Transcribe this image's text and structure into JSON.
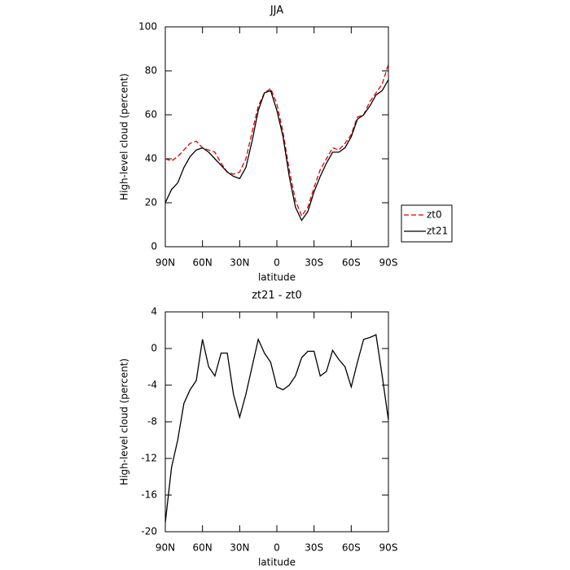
{
  "chart_data": [
    {
      "type": "line",
      "title": "JJA",
      "xlabel": "latitude",
      "ylabel": "High-level cloud (percent)",
      "x": [
        90,
        85,
        80,
        75,
        70,
        65,
        60,
        55,
        50,
        45,
        40,
        35,
        30,
        25,
        20,
        15,
        10,
        5,
        0,
        -5,
        -10,
        -15,
        -20,
        -25,
        -30,
        -35,
        -40,
        -45,
        -50,
        -55,
        -60,
        -65,
        -70,
        -75,
        -80,
        -85,
        -90
      ],
      "series": [
        {
          "name": "zt0",
          "color": "#e00000",
          "dashed": true,
          "values": [
            40,
            39,
            41,
            44,
            47,
            48,
            45,
            44,
            43,
            38,
            34,
            33,
            34,
            40,
            52,
            64,
            70,
            72,
            65,
            52,
            35,
            21,
            14,
            18,
            27,
            35,
            40,
            45,
            44,
            47,
            51,
            59,
            60,
            66,
            70,
            74,
            83
          ]
        },
        {
          "name": "zt21",
          "color": "#000000",
          "dashed": false,
          "values": [
            20,
            26,
            29,
            36,
            41,
            44,
            45,
            43,
            40,
            37,
            34,
            32,
            31,
            36,
            48,
            62,
            70,
            71,
            62,
            50,
            32,
            18,
            12,
            16,
            25,
            32,
            38,
            43,
            43,
            45,
            50,
            58,
            60,
            64,
            69,
            71,
            76
          ]
        }
      ],
      "xlim": [
        90,
        -90
      ],
      "xticks": [
        {
          "value": 90,
          "label": "90N"
        },
        {
          "value": 60,
          "label": "60N"
        },
        {
          "value": 30,
          "label": "30N"
        },
        0,
        {
          "value": -30,
          "label": "30S"
        },
        {
          "value": -60,
          "label": "60S"
        },
        {
          "value": -90,
          "label": "90S"
        }
      ],
      "ylim": [
        0,
        100
      ],
      "yticks": [
        0,
        20,
        40,
        60,
        80,
        100
      ],
      "legend": "right"
    },
    {
      "type": "line",
      "title": "zt21 - zt0",
      "xlabel": "latitude",
      "ylabel": "High-level cloud (percent)",
      "x": [
        90,
        85,
        80,
        75,
        70,
        65,
        60,
        55,
        50,
        45,
        40,
        35,
        30,
        25,
        20,
        15,
        10,
        5,
        0,
        -5,
        -10,
        -15,
        -20,
        -25,
        -30,
        -35,
        -40,
        -45,
        -50,
        -55,
        -60,
        -65,
        -70,
        -75,
        -80,
        -85,
        -90
      ],
      "series": [
        {
          "color": "#000000",
          "dashed": false,
          "values": [
            -19,
            -13,
            -10,
            -6,
            -4.5,
            -3.5,
            1,
            -2,
            -3,
            -0.5,
            -0.5,
            -5,
            -7.5,
            -5,
            -2,
            1,
            -0.5,
            -1.5,
            -4.2,
            -4.5,
            -4,
            -3,
            -1,
            -0.3,
            -0.3,
            -3,
            -2.5,
            -0.2,
            -1.2,
            -2,
            -4.2,
            -1.5,
            1,
            1.2,
            1.5,
            -3,
            -7.8
          ]
        }
      ],
      "xlim": [
        90,
        -90
      ],
      "xticks": [
        {
          "value": 90,
          "label": "90N"
        },
        {
          "value": 60,
          "label": "60N"
        },
        {
          "value": 30,
          "label": "30N"
        },
        0,
        {
          "value": -30,
          "label": "30S"
        },
        {
          "value": -60,
          "label": "60S"
        },
        {
          "value": -90,
          "label": "90S"
        }
      ],
      "ylim": [
        -20,
        4
      ],
      "yticks": [
        -20,
        -16,
        -12,
        -8,
        -4,
        0,
        4
      ]
    }
  ]
}
